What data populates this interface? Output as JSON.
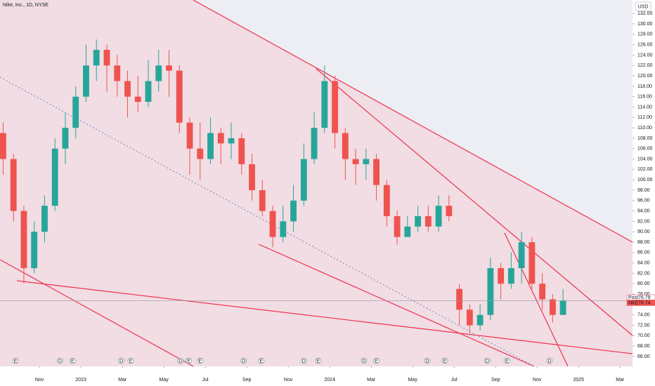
{
  "chart_data": {
    "type": "candlestick",
    "title": "Nike, Inc., 1D, NYSE",
    "currency": "USD",
    "up_color": "#26a69a",
    "down_color": "#ef5350",
    "x": [
      0,
      1,
      2,
      3,
      4,
      5,
      6,
      7,
      8,
      9,
      10,
      11,
      12,
      13,
      14,
      15,
      16,
      17,
      18,
      19,
      20,
      21,
      22,
      23,
      24,
      25,
      26,
      27,
      28,
      29,
      30,
      31,
      32,
      33,
      34,
      35,
      36,
      37,
      38,
      39,
      40,
      41,
      42,
      43,
      44,
      45,
      46,
      47,
      48,
      49,
      50,
      51,
      52,
      53,
      54
    ],
    "open": [
      109,
      104,
      94,
      83,
      90,
      95,
      106,
      110,
      116,
      122,
      125,
      122,
      119,
      116,
      115,
      119,
      122,
      121,
      111,
      106,
      104,
      109,
      107,
      108,
      103,
      98,
      94,
      89,
      92,
      96,
      104,
      110,
      119,
      109,
      104,
      103,
      104,
      99,
      93,
      89,
      91,
      93,
      91,
      95,
      79,
      75,
      72,
      74,
      83,
      80,
      83,
      88,
      80,
      77,
      74
    ],
    "high": [
      111,
      105,
      95,
      92,
      97,
      108,
      113,
      118,
      126,
      127,
      126,
      124,
      121,
      120,
      123,
      125,
      125,
      122,
      112,
      111,
      112,
      110,
      111,
      109,
      105,
      100,
      95,
      95,
      99,
      107,
      113,
      122,
      120,
      110,
      106,
      106,
      105,
      100,
      94,
      93,
      95,
      95,
      97,
      97,
      80,
      76,
      76,
      85,
      84,
      86,
      90,
      89,
      82,
      78,
      79
    ],
    "low": [
      101,
      92,
      80,
      82,
      88,
      94,
      103,
      108,
      115,
      119,
      117,
      116,
      112,
      113,
      114,
      117,
      116,
      109,
      101,
      100,
      103,
      103,
      104,
      101,
      96,
      93,
      87,
      88,
      90,
      95,
      103,
      109,
      106,
      100,
      99,
      100,
      96,
      91,
      87.5,
      89,
      90,
      90,
      90,
      92,
      72,
      70.5,
      71,
      73,
      77,
      79,
      80,
      79,
      75,
      72.5,
      74
    ],
    "close": [
      104,
      94,
      83,
      90,
      95,
      106,
      110,
      116,
      122,
      125,
      122,
      119,
      116,
      115,
      119,
      122,
      121,
      111,
      106,
      104,
      109,
      107,
      108,
      103,
      98,
      94,
      89,
      92,
      96,
      104,
      110,
      119,
      109,
      104,
      103,
      104,
      99,
      93,
      89,
      91,
      93,
      91,
      95,
      93,
      75,
      72,
      74,
      83,
      80,
      83,
      88,
      80,
      77,
      74,
      76.74
    ],
    "xlim": [
      0.2,
      61.2
    ],
    "xticks": [
      {
        "value": 4,
        "label": "Nov"
      },
      {
        "value": 8,
        "label": "2023"
      },
      {
        "value": 12,
        "label": "Mar"
      },
      {
        "value": 16,
        "label": "May"
      },
      {
        "value": 20,
        "label": "Jul"
      },
      {
        "value": 24,
        "label": "Sep"
      },
      {
        "value": 28,
        "label": "Nov"
      },
      {
        "value": 32,
        "label": "2024"
      },
      {
        "value": 36,
        "label": "Mar"
      },
      {
        "value": 40,
        "label": "May"
      },
      {
        "value": 44,
        "label": "Jul"
      },
      {
        "value": 48,
        "label": "Sep"
      },
      {
        "value": 52,
        "label": "Nov"
      },
      {
        "value": 56,
        "label": "2025"
      },
      {
        "value": 60,
        "label": "Mar"
      }
    ],
    "ylim": [
      64.1,
      134.6
    ],
    "yticks": [
      {
        "value": 66,
        "label": "66.00"
      },
      {
        "value": 68,
        "label": "68.00"
      },
      {
        "value": 70,
        "label": "70.00"
      },
      {
        "value": 72,
        "label": "72.00"
      },
      {
        "value": 74,
        "label": "74.00"
      },
      {
        "value": 76,
        "label": "76.00"
      },
      {
        "value": 78,
        "label": "78.00"
      },
      {
        "value": 80,
        "label": "80.00"
      },
      {
        "value": 82,
        "label": "82.00"
      },
      {
        "value": 84,
        "label": "84.00"
      },
      {
        "value": 86,
        "label": "86.00"
      },
      {
        "value": 88,
        "label": "88.00"
      },
      {
        "value": 90,
        "label": "90.00"
      },
      {
        "value": 92,
        "label": "92.00"
      },
      {
        "value": 94,
        "label": "94.00"
      },
      {
        "value": 96,
        "label": "96.00"
      },
      {
        "value": 98,
        "label": "98.00"
      },
      {
        "value": 100,
        "label": "100.00"
      },
      {
        "value": 102,
        "label": "102.00"
      },
      {
        "value": 104,
        "label": "104.00"
      },
      {
        "value": 106,
        "label": "106.00"
      },
      {
        "value": 108,
        "label": "108.00"
      },
      {
        "value": 110,
        "label": "110.00"
      },
      {
        "value": 112,
        "label": "112.00"
      },
      {
        "value": 114,
        "label": "114.00"
      },
      {
        "value": 116,
        "label": "116.00"
      },
      {
        "value": 118,
        "label": "118.00"
      },
      {
        "value": 120,
        "label": "120.00"
      },
      {
        "value": 122,
        "label": "122.00"
      },
      {
        "value": 124,
        "label": "124.00"
      },
      {
        "value": 126,
        "label": "126.00"
      },
      {
        "value": 128,
        "label": "128.00"
      },
      {
        "value": 130,
        "label": "130.00"
      },
      {
        "value": 132,
        "label": "132.00"
      }
    ],
    "price_labels": [
      {
        "label": "Post",
        "value": 76.79,
        "color": "#e5536a"
      },
      {
        "label": "NKE",
        "value": 76.74,
        "color": "#ef5350"
      }
    ],
    "events": [
      {
        "label": "E",
        "x": 1.7
      },
      {
        "label": "D",
        "x": 6.0
      },
      {
        "label": "E",
        "x": 7.2
      },
      {
        "label": "D",
        "x": 11.9
      },
      {
        "label": "E",
        "x": 12.8
      },
      {
        "label": "D",
        "x": 17.6
      },
      {
        "label": "E",
        "x": 18.4
      },
      {
        "label": "E",
        "x": 19.5
      },
      {
        "label": "D",
        "x": 23.7
      },
      {
        "label": "E",
        "x": 25.4
      },
      {
        "label": "D",
        "x": 29.5
      },
      {
        "label": "E",
        "x": 30.9
      },
      {
        "label": "D",
        "x": 35.3
      },
      {
        "label": "E",
        "x": 36.5
      },
      {
        "label": "D",
        "x": 41.4
      },
      {
        "label": "E",
        "x": 43.1
      },
      {
        "label": "D",
        "x": 47.2
      },
      {
        "label": "E",
        "x": 49.1
      },
      {
        "label": "D",
        "x": 53.2
      }
    ]
  }
}
